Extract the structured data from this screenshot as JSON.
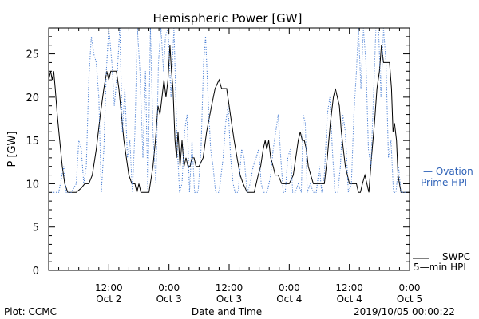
{
  "chart_data": {
    "type": "line",
    "title": "Hemispheric Power [GW]",
    "xlabel": "Date and Time",
    "ylabel": "P [GW]",
    "xlim": [
      0,
      72
    ],
    "ylim": [
      0,
      28
    ],
    "y_ticks": [
      0,
      5,
      10,
      15,
      20,
      25
    ],
    "x_ticks": [
      {
        "x": 12,
        "time": "12:00",
        "date": "Oct 2"
      },
      {
        "x": 24,
        "time": "0:00",
        "date": "Oct 3"
      },
      {
        "x": 36,
        "time": "12:00",
        "date": "Oct 3"
      },
      {
        "x": 48,
        "time": "0:00",
        "date": "Oct 4"
      },
      {
        "x": 60,
        "time": "12:00",
        "date": "Oct 4"
      },
      {
        "x": 72,
        "time": "0:00",
        "date": "Oct 5"
      }
    ],
    "grid": false,
    "legend": [
      {
        "series": "ovation",
        "line1": "— Ovation",
        "line2": "Prime HPI"
      },
      {
        "series": "swpc",
        "line1": "SWPC",
        "line2": "5—min HPI"
      }
    ],
    "series": [
      {
        "key": "swpc",
        "color": "#000000",
        "style": "solid",
        "points": [
          [
            0,
            22
          ],
          [
            0.4,
            23
          ],
          [
            0.7,
            22
          ],
          [
            1,
            23
          ],
          [
            1.3,
            21
          ],
          [
            1.7,
            18
          ],
          [
            2.2,
            15
          ],
          [
            2.7,
            12
          ],
          [
            3.2,
            10
          ],
          [
            3.8,
            9
          ],
          [
            4.5,
            9
          ],
          [
            5.5,
            9
          ],
          [
            6.5,
            9.5
          ],
          [
            7.2,
            10
          ],
          [
            8,
            10
          ],
          [
            8.7,
            11
          ],
          [
            9.5,
            14
          ],
          [
            10.3,
            18
          ],
          [
            11,
            21
          ],
          [
            11.6,
            23
          ],
          [
            12,
            22
          ],
          [
            12.4,
            23
          ],
          [
            13,
            23
          ],
          [
            13.5,
            23
          ],
          [
            14,
            21
          ],
          [
            14.5,
            18
          ],
          [
            15,
            15
          ],
          [
            15.5,
            13
          ],
          [
            16,
            11
          ],
          [
            16.6,
            10
          ],
          [
            17.2,
            10
          ],
          [
            17.6,
            9
          ],
          [
            18,
            10
          ],
          [
            18.4,
            9
          ],
          [
            19,
            9
          ],
          [
            20,
            9
          ],
          [
            20.8,
            12
          ],
          [
            21.3,
            15
          ],
          [
            21.8,
            19
          ],
          [
            22.2,
            18
          ],
          [
            22.6,
            20
          ],
          [
            23,
            22
          ],
          [
            23.4,
            20
          ],
          [
            23.8,
            22
          ],
          [
            24.2,
            26
          ],
          [
            24.5,
            23
          ],
          [
            24.8,
            21
          ],
          [
            25.2,
            15
          ],
          [
            25.5,
            13
          ],
          [
            25.8,
            16
          ],
          [
            26.2,
            12
          ],
          [
            26.6,
            15
          ],
          [
            27,
            12
          ],
          [
            27.4,
            13
          ],
          [
            27.8,
            12
          ],
          [
            28.2,
            12
          ],
          [
            28.6,
            13
          ],
          [
            29,
            13
          ],
          [
            29.4,
            12
          ],
          [
            30,
            12
          ],
          [
            30.8,
            13
          ],
          [
            31.5,
            16
          ],
          [
            32.5,
            19
          ],
          [
            33.2,
            21
          ],
          [
            34,
            22
          ],
          [
            34.5,
            21
          ],
          [
            35,
            21
          ],
          [
            35.5,
            21
          ],
          [
            36,
            19
          ],
          [
            36.5,
            17
          ],
          [
            37,
            15
          ],
          [
            37.6,
            13
          ],
          [
            38.2,
            11
          ],
          [
            38.8,
            10
          ],
          [
            39.6,
            9
          ],
          [
            40.4,
            9
          ],
          [
            41,
            9
          ],
          [
            41.8,
            11
          ],
          [
            42.3,
            12
          ],
          [
            42.8,
            14
          ],
          [
            43.2,
            15
          ],
          [
            43.5,
            14
          ],
          [
            43.9,
            15
          ],
          [
            44.3,
            13
          ],
          [
            44.8,
            12
          ],
          [
            45.2,
            11
          ],
          [
            45.8,
            11
          ],
          [
            46.5,
            10
          ],
          [
            47.2,
            10
          ],
          [
            48,
            10
          ],
          [
            48.8,
            11
          ],
          [
            49.3,
            13
          ],
          [
            49.8,
            15
          ],
          [
            50.2,
            16
          ],
          [
            50.6,
            15
          ],
          [
            51,
            15
          ],
          [
            51.4,
            14
          ],
          [
            51.8,
            12
          ],
          [
            52.3,
            11
          ],
          [
            52.8,
            10
          ],
          [
            53.5,
            10
          ],
          [
            54.2,
            10
          ],
          [
            55,
            10
          ],
          [
            55.6,
            13
          ],
          [
            56.2,
            17
          ],
          [
            56.8,
            20
          ],
          [
            57.2,
            21
          ],
          [
            57.6,
            20
          ],
          [
            58,
            19
          ],
          [
            58.4,
            16
          ],
          [
            58.8,
            14
          ],
          [
            59.2,
            12
          ],
          [
            59.6,
            11
          ],
          [
            60,
            10
          ],
          [
            60.5,
            10
          ],
          [
            61,
            10
          ],
          [
            61.4,
            10
          ],
          [
            61.8,
            9
          ],
          [
            62.2,
            9
          ],
          [
            62.6,
            10
          ],
          [
            63.1,
            11
          ],
          [
            63.5,
            10
          ],
          [
            63.9,
            9
          ],
          [
            64.4,
            13
          ],
          [
            65,
            17
          ],
          [
            65.5,
            21
          ],
          [
            66,
            23
          ],
          [
            66.4,
            26
          ],
          [
            66.8,
            24
          ],
          [
            67.2,
            24
          ],
          [
            67.6,
            24
          ],
          [
            68,
            24
          ],
          [
            68.4,
            21
          ],
          [
            68.7,
            16
          ],
          [
            69,
            17
          ],
          [
            69.4,
            15
          ],
          [
            69.7,
            11
          ],
          [
            70,
            10
          ],
          [
            70.3,
            9
          ],
          [
            70.6,
            9
          ],
          [
            71,
            9
          ],
          [
            72,
            9
          ]
        ]
      },
      {
        "key": "ovation",
        "color": "#4a7fd4",
        "style": "dotted",
        "points": [
          [
            0,
            9
          ],
          [
            2,
            9
          ],
          [
            3,
            12
          ],
          [
            3.5,
            9
          ],
          [
            4.5,
            9
          ],
          [
            5.5,
            10
          ],
          [
            6,
            15
          ],
          [
            6.5,
            14
          ],
          [
            7,
            10
          ],
          [
            7.5,
            12
          ],
          [
            8,
            22
          ],
          [
            8.5,
            27
          ],
          [
            9,
            25
          ],
          [
            9.5,
            24
          ],
          [
            10,
            20
          ],
          [
            10.5,
            9
          ],
          [
            11,
            14
          ],
          [
            11.5,
            23
          ],
          [
            12,
            28
          ],
          [
            12.6,
            24
          ],
          [
            13.1,
            19
          ],
          [
            13.7,
            23
          ],
          [
            14.2,
            28
          ],
          [
            14.7,
            16
          ],
          [
            15.2,
            21
          ],
          [
            15.7,
            13
          ],
          [
            16.2,
            15
          ],
          [
            16.7,
            9
          ],
          [
            17.2,
            16
          ],
          [
            17.7,
            28
          ],
          [
            18.2,
            23
          ],
          [
            18.8,
            13
          ],
          [
            19.3,
            23
          ],
          [
            19.8,
            9
          ],
          [
            20.3,
            28
          ],
          [
            20.8,
            16
          ],
          [
            21.4,
            10
          ],
          [
            21.9,
            24
          ],
          [
            22.4,
            28
          ],
          [
            22.9,
            23
          ],
          [
            23.3,
            27
          ],
          [
            23.8,
            28
          ],
          [
            24.4,
            20
          ],
          [
            25,
            28
          ],
          [
            25.6,
            15
          ],
          [
            26.1,
            9
          ],
          [
            26.6,
            10
          ],
          [
            27.1,
            16
          ],
          [
            27.6,
            18
          ],
          [
            28.1,
            9
          ],
          [
            28.6,
            15
          ],
          [
            29.1,
            9
          ],
          [
            29.8,
            9
          ],
          [
            30.4,
            14
          ],
          [
            30.9,
            24
          ],
          [
            31.3,
            27
          ],
          [
            31.8,
            20
          ],
          [
            32.3,
            14
          ],
          [
            32.8,
            12
          ],
          [
            33.3,
            9
          ],
          [
            34,
            9
          ],
          [
            34.8,
            13
          ],
          [
            35.3,
            17
          ],
          [
            35.8,
            19
          ],
          [
            36.3,
            13
          ],
          [
            36.8,
            10
          ],
          [
            37.2,
            9
          ],
          [
            37.8,
            9
          ],
          [
            38.5,
            14
          ],
          [
            39,
            13
          ],
          [
            39.6,
            9
          ],
          [
            40.2,
            10
          ],
          [
            40.8,
            12
          ],
          [
            41.4,
            13
          ],
          [
            41.9,
            14
          ],
          [
            42.4,
            10
          ],
          [
            42.9,
            9
          ],
          [
            43.6,
            9
          ],
          [
            44.3,
            11
          ],
          [
            44.8,
            14
          ],
          [
            45.3,
            16
          ],
          [
            45.8,
            18
          ],
          [
            46.3,
            13
          ],
          [
            46.8,
            9
          ],
          [
            47.2,
            9
          ],
          [
            47.7,
            13
          ],
          [
            48.2,
            14
          ],
          [
            48.7,
            9
          ],
          [
            49.2,
            9
          ],
          [
            49.8,
            10
          ],
          [
            50.4,
            9
          ],
          [
            50.8,
            18
          ],
          [
            51.2,
            17
          ],
          [
            51.6,
            9
          ],
          [
            52.2,
            10
          ],
          [
            52.8,
            9
          ],
          [
            53.4,
            9
          ],
          [
            54,
            12
          ],
          [
            54.5,
            9
          ],
          [
            55,
            11
          ],
          [
            55.6,
            18
          ],
          [
            56.1,
            20
          ],
          [
            56.6,
            14
          ],
          [
            57.1,
            9
          ],
          [
            57.7,
            9
          ],
          [
            58.2,
            12
          ],
          [
            58.7,
            18
          ],
          [
            59.2,
            16
          ],
          [
            59.8,
            9
          ],
          [
            60.4,
            10
          ],
          [
            60.9,
            18
          ],
          [
            61.4,
            23
          ],
          [
            61.8,
            28
          ],
          [
            62.3,
            21
          ],
          [
            62.8,
            28
          ],
          [
            63.3,
            24
          ],
          [
            63.8,
            14
          ],
          [
            64.3,
            12
          ],
          [
            64.8,
            20
          ],
          [
            65.3,
            28
          ],
          [
            65.8,
            28
          ],
          [
            66.3,
            20
          ],
          [
            66.8,
            28
          ],
          [
            67.3,
            24
          ],
          [
            67.8,
            13
          ],
          [
            68.3,
            15
          ],
          [
            68.8,
            9
          ],
          [
            69.3,
            9
          ],
          [
            69.8,
            12
          ],
          [
            70.3,
            9
          ],
          [
            71,
            9
          ],
          [
            72,
            9
          ]
        ]
      }
    ]
  },
  "footer": {
    "left": "Plot: CCMC",
    "right": "2019/10/05 00:00:22"
  }
}
